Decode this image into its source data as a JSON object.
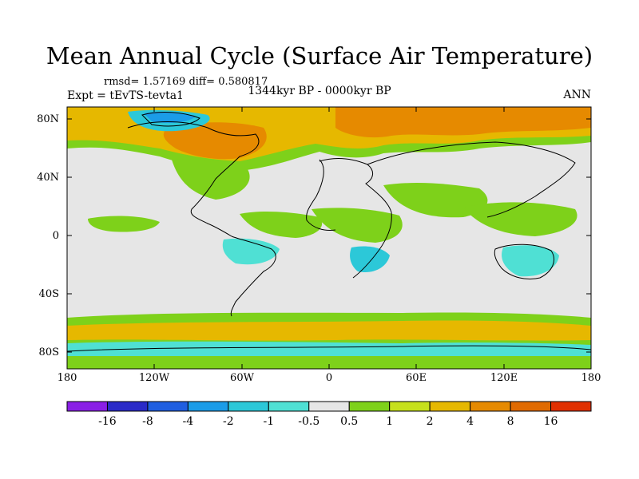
{
  "title": "Mean Annual Cycle (Surface Air Temperature)",
  "stats_text": "rmsd= 1.57169 diff= 0.580817",
  "experiment": "Expt = tEvTS-tevta1",
  "period": "1344kyr BP - 0000kyr BP",
  "season": "ANN",
  "lat_labels": [
    "80N",
    "40N",
    "0",
    "40S",
    "80S"
  ],
  "lon_labels": [
    "180",
    "120W",
    "60W",
    "0",
    "60E",
    "120E",
    "180"
  ],
  "colorbar": {
    "colors": [
      "#8a1fe6",
      "#2a2ac8",
      "#1f5ee0",
      "#1b9ce8",
      "#2cc8d8",
      "#4fe0d4",
      "#e6e6e6",
      "#7ed11a",
      "#c6e01c",
      "#e6b800",
      "#e68a00",
      "#e06a00",
      "#e03000"
    ],
    "labels": [
      "-16",
      "-8",
      "-4",
      "-2",
      "-1",
      "-0.5",
      "0.5",
      "1",
      "2",
      "4",
      "8",
      "16"
    ]
  },
  "map_colors": {
    "neutral": "#e6e6e6",
    "light_green": "#7ed11a",
    "yellow_green": "#c6e01c",
    "gold": "#e6b800",
    "orange": "#e68a00",
    "dark_orange": "#e06a00",
    "cyan": "#2cc8d8",
    "light_cyan": "#4fe0d4",
    "blue": "#1b9ce8"
  }
}
